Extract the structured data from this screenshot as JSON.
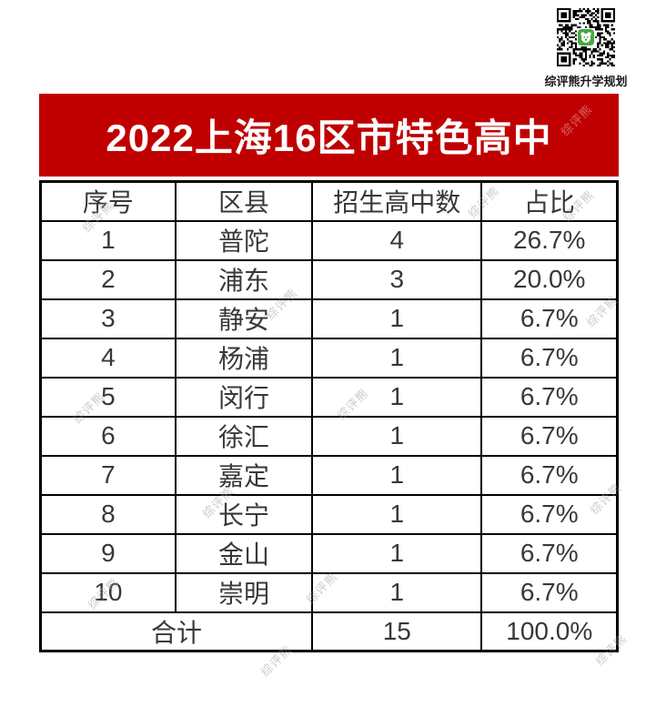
{
  "watermark": {
    "text": "综评熊"
  },
  "qr": {
    "label": "综评熊升学规划",
    "center_color": "#45a843"
  },
  "banner": {
    "title": "2022上海16区市特色高中",
    "background": "#c00000",
    "text_color": "#ffffff"
  },
  "table": {
    "headers": [
      "序号",
      "区县",
      "招生高中数",
      "占比"
    ],
    "rows": [
      [
        "1",
        "普陀",
        "4",
        "26.7%"
      ],
      [
        "2",
        "浦东",
        "3",
        "20.0%"
      ],
      [
        "3",
        "静安",
        "1",
        "6.7%"
      ],
      [
        "4",
        "杨浦",
        "1",
        "6.7%"
      ],
      [
        "5",
        "闵行",
        "1",
        "6.7%"
      ],
      [
        "6",
        "徐汇",
        "1",
        "6.7%"
      ],
      [
        "7",
        "嘉定",
        "1",
        "6.7%"
      ],
      [
        "8",
        "长宁",
        "1",
        "6.7%"
      ],
      [
        "9",
        "金山",
        "1",
        "6.7%"
      ],
      [
        "10",
        "崇明",
        "1",
        "6.7%"
      ]
    ],
    "total": {
      "label": "合计",
      "count": "15",
      "percent": "100.0%"
    }
  },
  "chart_data": {
    "type": "table",
    "title": "2022上海16区市特色高中",
    "columns": [
      "序号",
      "区县",
      "招生高中数",
      "占比"
    ],
    "categories": [
      "普陀",
      "浦东",
      "静安",
      "杨浦",
      "闵行",
      "徐汇",
      "嘉定",
      "长宁",
      "金山",
      "崇明"
    ],
    "values": [
      4,
      3,
      1,
      1,
      1,
      1,
      1,
      1,
      1,
      1
    ],
    "percentages": [
      26.7,
      20.0,
      6.7,
      6.7,
      6.7,
      6.7,
      6.7,
      6.7,
      6.7,
      6.7
    ],
    "total_label": "合计",
    "total_count": 15,
    "total_percent": 100.0
  }
}
